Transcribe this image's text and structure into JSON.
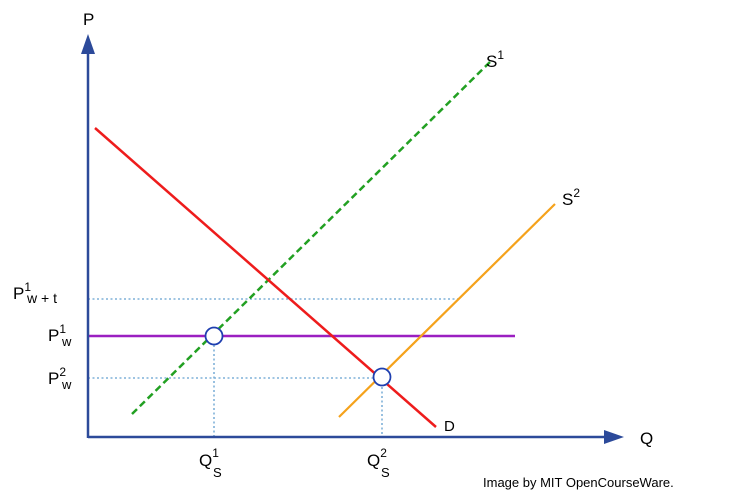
{
  "axes": {
    "y_label": "P",
    "x_label": "Q"
  },
  "curves": {
    "s1": {
      "base": "S",
      "sup": "1",
      "color": "#22a022"
    },
    "s2": {
      "base": "S",
      "sup": "2",
      "color": "#f5a21b"
    },
    "d": {
      "label": "D",
      "color": "#ee1c1c"
    },
    "world_price": {
      "color": "#9b1fc1"
    }
  },
  "price_labels": {
    "pw_t": {
      "base": "P",
      "sup": "1",
      "sub": "w + t"
    },
    "pw1": {
      "base": "P",
      "sup": "1",
      "sub": "w"
    },
    "pw2": {
      "base": "P",
      "sup": "2",
      "sub": "w"
    }
  },
  "quantity_labels": {
    "qs1": {
      "base": "Q",
      "sup": "1",
      "sub": "S"
    },
    "qs2": {
      "base": "Q",
      "sup": "2",
      "sub": "S"
    }
  },
  "colors": {
    "axis": "#2c4a9a",
    "guide": "#7fb1d8",
    "marker_stroke": "#1f3fb0"
  },
  "credit": "Image by MIT OpenCourseWare."
}
